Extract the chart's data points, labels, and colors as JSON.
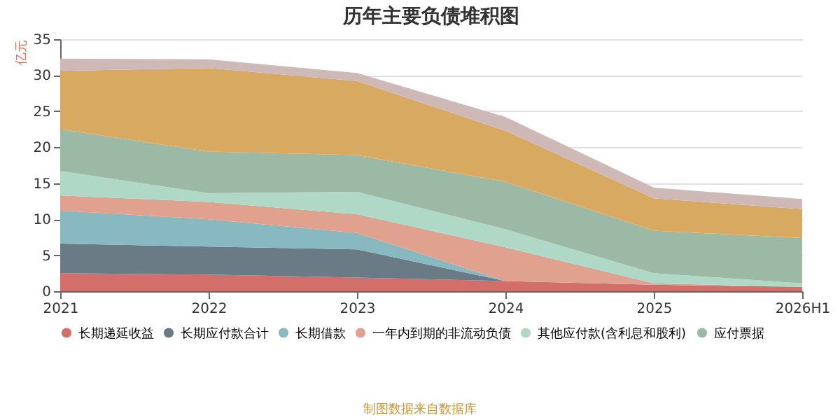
{
  "chart_data": {
    "type": "area",
    "stacked": true,
    "title": "历年主要负债堆积图",
    "ylabel": "亿元",
    "categories": [
      "2021",
      "2022",
      "2023",
      "2024",
      "2025",
      "2026H1"
    ],
    "series": [
      {
        "name": "长期递延收益",
        "color": "#d46e6a",
        "values": [
          2.5,
          2.3,
          1.9,
          1.4,
          0.9,
          0.6
        ]
      },
      {
        "name": "长期应付款合计",
        "color": "#6b7b86",
        "values": [
          4.1,
          3.9,
          3.9,
          0,
          0,
          0
        ]
      },
      {
        "name": "长期借款",
        "color": "#88b8c0",
        "values": [
          4.6,
          3.8,
          2.3,
          0,
          0,
          0
        ]
      },
      {
        "name": "一年内到期的非流动负债",
        "color": "#e0a18e",
        "values": [
          2.1,
          2.4,
          2.6,
          4.7,
          0.2,
          0
        ]
      },
      {
        "name": "其他应付款(含利息和股利)",
        "color": "#b0d8c6",
        "values": [
          3.4,
          1.2,
          3.1,
          2.5,
          1.4,
          0.5
        ]
      },
      {
        "name": "应付票据",
        "color": "#9cb9a6",
        "values": [
          5.8,
          5.8,
          5.1,
          6.6,
          5.9,
          6.3
        ]
      },
      {
        "color": "#d8a960",
        "values": [
          8.1,
          11.6,
          10.3,
          7.1,
          4.5,
          4.0
        ]
      },
      {
        "color": "#cfb9b7",
        "values": [
          1.7,
          1.2,
          1.1,
          1.9,
          1.5,
          1.4
        ]
      }
    ],
    "ylim": [
      0,
      35
    ],
    "yticks": [
      0,
      5,
      10,
      15,
      20,
      25,
      30,
      35
    ],
    "grid": "y",
    "legend": "bottom",
    "annotations": [
      "制图数据来自数据库"
    ]
  }
}
